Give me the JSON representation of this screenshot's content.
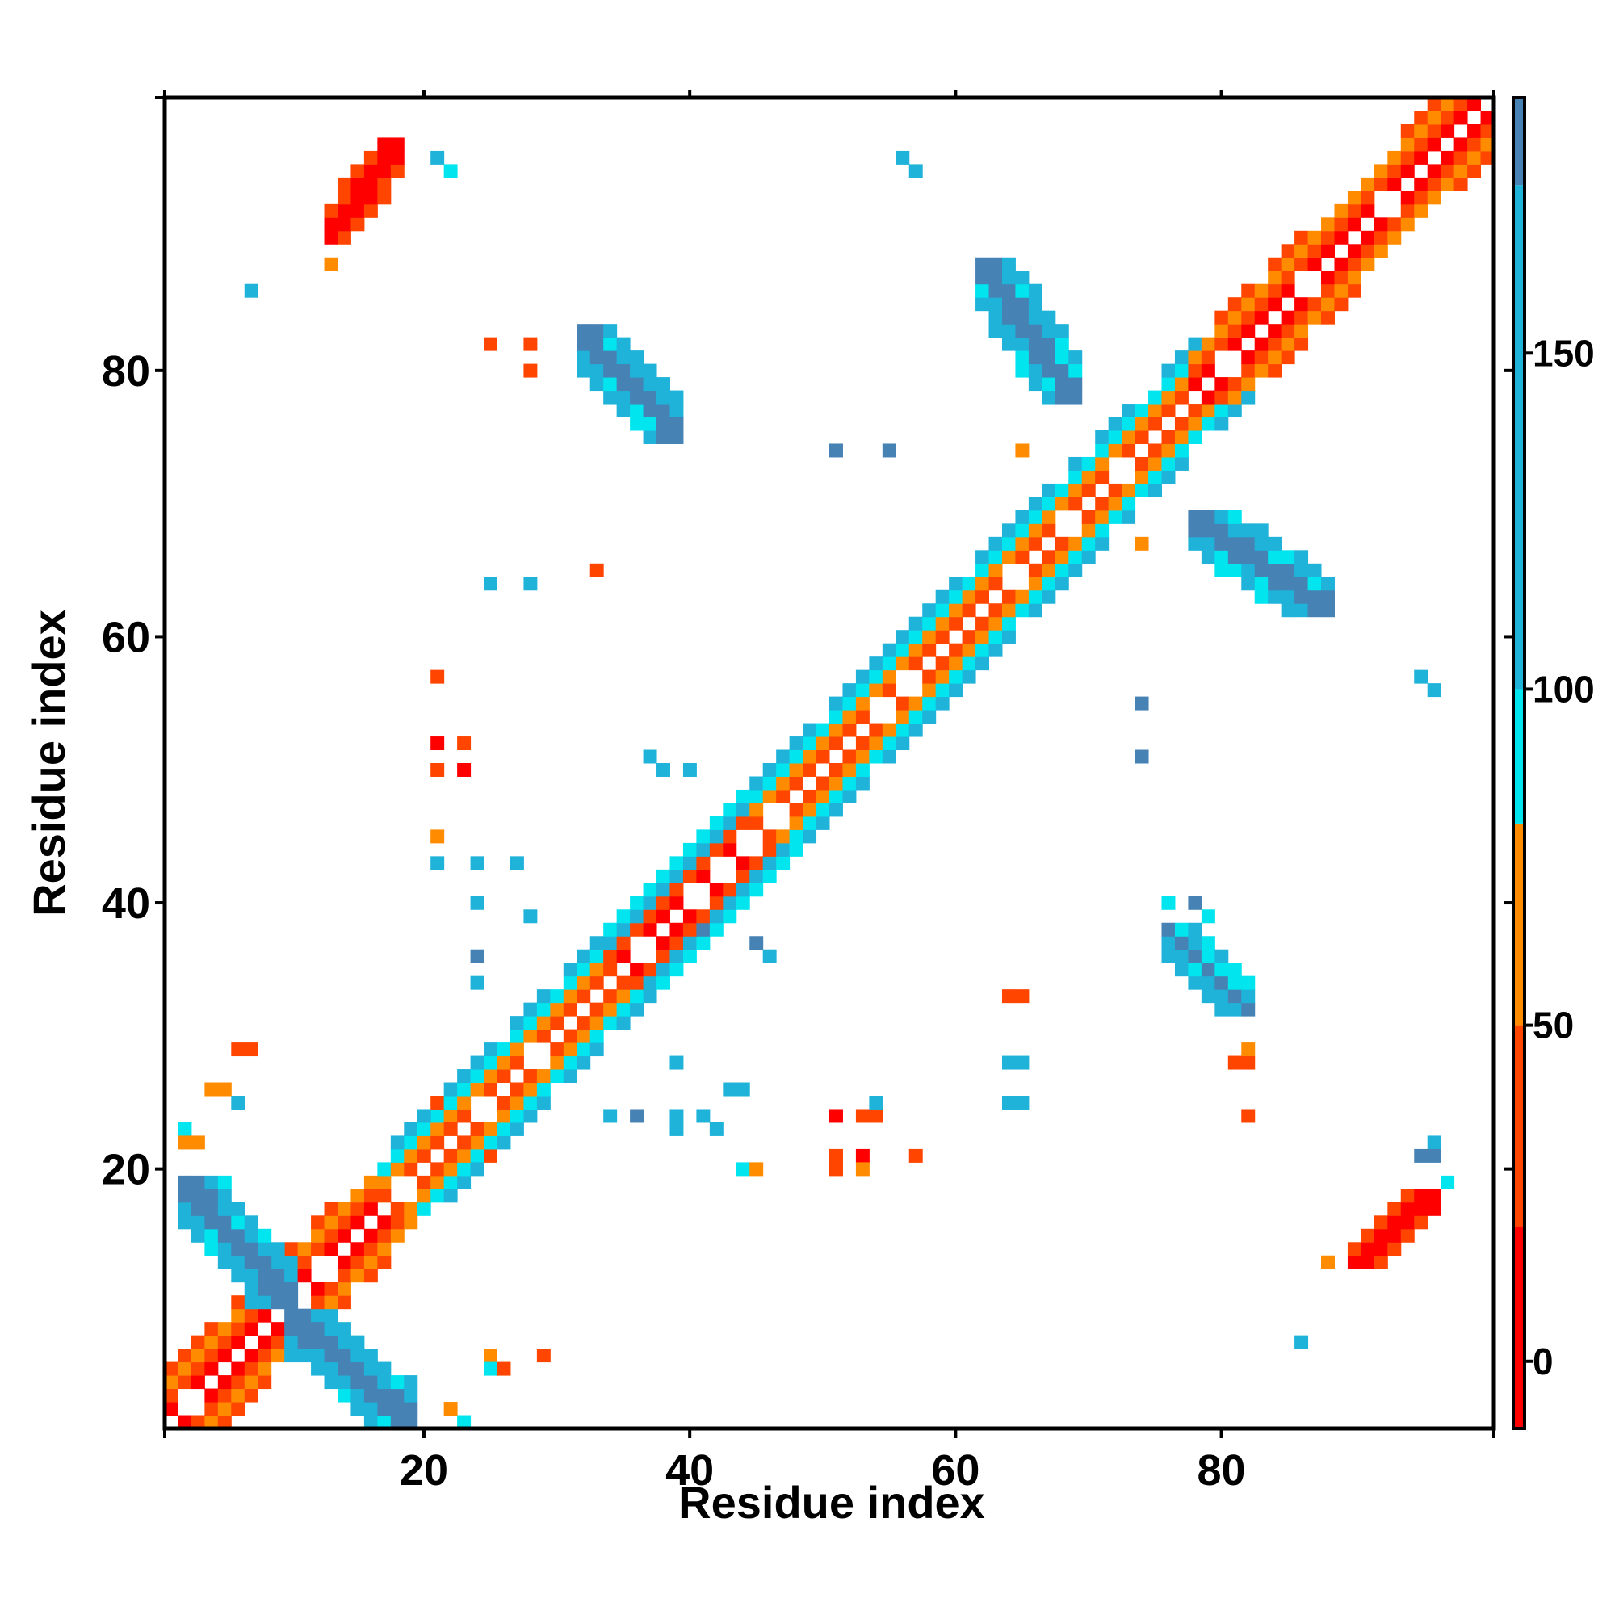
{
  "chart_data": {
    "type": "heatmap",
    "title": "",
    "xlabel": "Residue index",
    "ylabel": "Residue index",
    "xlim": [
      1,
      100
    ],
    "ylim": [
      1,
      100
    ],
    "x_ticks": [
      20,
      40,
      60,
      80
    ],
    "y_ticks": [
      20,
      40,
      60,
      80
    ],
    "n_residues": 100,
    "symmetric": true,
    "colorbar": {
      "range": [
        -10,
        188
      ],
      "ticks": [
        0,
        50,
        100,
        150
      ],
      "bands": [
        {
          "from": -10,
          "to": 20,
          "color": "#ff0000"
        },
        {
          "from": 20,
          "to": 50,
          "color": "#ff4500"
        },
        {
          "from": 50,
          "to": 80,
          "color": "#ff8c00"
        },
        {
          "from": 80,
          "to": 100,
          "color": "#00e5ee"
        },
        {
          "from": 100,
          "to": 175,
          "color": "#1fb3d9"
        },
        {
          "from": 175,
          "to": 188,
          "color": "#4682b4"
        }
      ]
    },
    "categories_colors": {
      "red": "#ff0000",
      "orange_red": "#ff4500",
      "orange": "#ff8c00",
      "cyan": "#00e5ee",
      "sky": "#1fb3d9",
      "steel": "#4682b4"
    },
    "diagonal_band": {
      "residues_start": 1,
      "residues_end": 100,
      "helix_segments": [
        {
          "from": 1,
          "to": 12,
          "pattern": "red-orange"
        },
        {
          "from": 13,
          "to": 22,
          "pattern": "red-orange"
        },
        {
          "from": 17,
          "to": 34,
          "pattern": "orange-cyan"
        },
        {
          "from": 34,
          "to": 45,
          "pattern": "red-cyan"
        },
        {
          "from": 45,
          "to": 58,
          "pattern": "orange-cyan"
        },
        {
          "from": 58,
          "to": 66,
          "pattern": "orange-cyan"
        },
        {
          "from": 66,
          "to": 78,
          "pattern": "orange-cyan"
        },
        {
          "from": 78,
          "to": 100,
          "pattern": "red-orange"
        }
      ]
    },
    "contact_patches": [
      {
        "x": [
          13,
          18
        ],
        "y": [
          90,
          97
        ],
        "value": 10,
        "shape": "diag"
      },
      {
        "x": [
          2,
          10
        ],
        "y": [
          10,
          19
        ],
        "value": 150,
        "shape": "anti"
      },
      {
        "x": [
          10,
          19
        ],
        "y": [
          1,
          9
        ],
        "value": 150,
        "shape": "anti"
      },
      {
        "x": [
          32,
          39
        ],
        "y": [
          75,
          83
        ],
        "value": 150,
        "shape": "anti"
      },
      {
        "x": [
          62,
          69
        ],
        "y": [
          78,
          88
        ],
        "value": 150,
        "shape": "anti"
      },
      {
        "x": [
          76,
          82
        ],
        "y": [
          32,
          38
        ],
        "value": 150,
        "shape": "anti"
      },
      {
        "x": [
          78,
          88
        ],
        "y": [
          62,
          69
        ],
        "value": 150,
        "shape": "anti"
      },
      {
        "x": [
          90,
          96
        ],
        "y": [
          13,
          18
        ],
        "value": 10,
        "shape": "diag"
      }
    ]
  }
}
